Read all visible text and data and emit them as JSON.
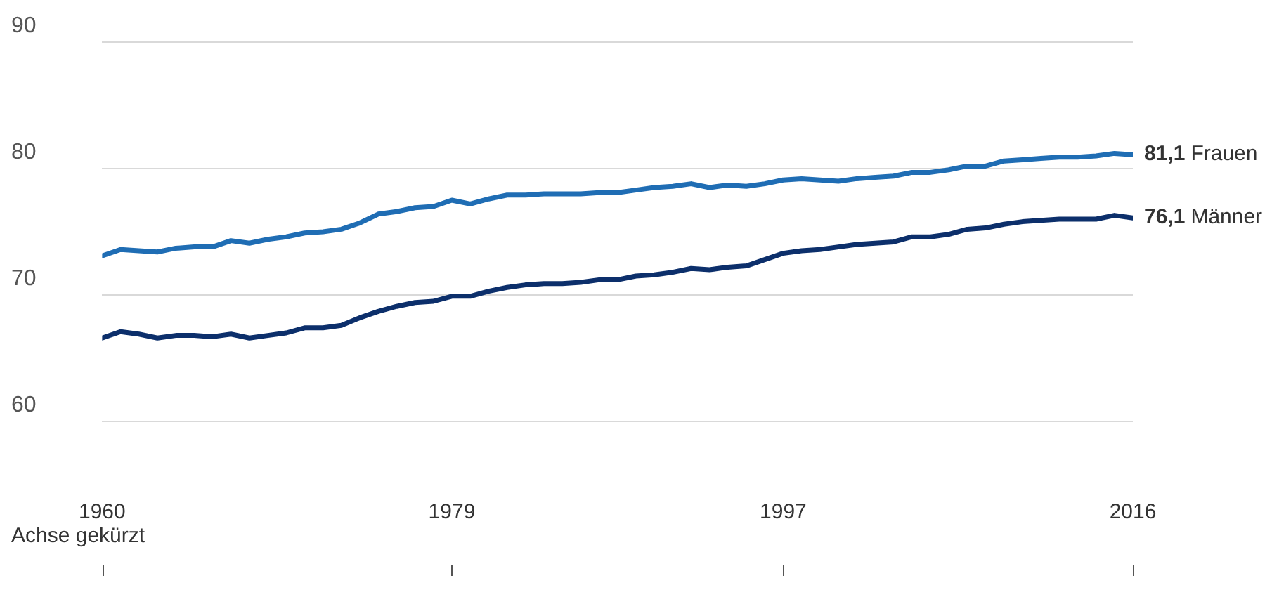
{
  "chart_data": {
    "type": "line",
    "annotations": [
      "Achse gekürzt"
    ],
    "x": [
      1960,
      1961,
      1962,
      1963,
      1964,
      1965,
      1966,
      1967,
      1968,
      1969,
      1970,
      1971,
      1972,
      1973,
      1974,
      1975,
      1976,
      1977,
      1978,
      1979,
      1980,
      1981,
      1982,
      1983,
      1984,
      1985,
      1986,
      1987,
      1988,
      1989,
      1990,
      1991,
      1992,
      1993,
      1994,
      1995,
      1996,
      1997,
      1998,
      1999,
      2000,
      2001,
      2002,
      2003,
      2004,
      2005,
      2006,
      2007,
      2008,
      2009,
      2010,
      2011,
      2012,
      2013,
      2014,
      2015,
      2016
    ],
    "series": [
      {
        "name": "Frauen",
        "color": "#1f6db4",
        "values": [
          73.1,
          73.6,
          73.5,
          73.4,
          73.7,
          73.8,
          73.8,
          74.3,
          74.1,
          74.4,
          74.6,
          74.9,
          75.0,
          75.2,
          75.7,
          76.4,
          76.6,
          76.9,
          77.0,
          77.5,
          77.2,
          77.6,
          77.9,
          77.9,
          78.0,
          78.0,
          78.0,
          78.1,
          78.1,
          78.3,
          78.5,
          78.6,
          78.8,
          78.5,
          78.7,
          78.6,
          78.8,
          79.1,
          79.2,
          79.1,
          79.0,
          79.2,
          79.3,
          79.4,
          79.7,
          79.7,
          79.9,
          80.2,
          80.2,
          80.6,
          80.7,
          80.8,
          80.9,
          80.9,
          81.0,
          81.2,
          81.1
        ],
        "value_labels": [
          null,
          null,
          null,
          null,
          null,
          null,
          null,
          null,
          null,
          null,
          null,
          null,
          null,
          null,
          null,
          null,
          null,
          null,
          null,
          null,
          null,
          null,
          null,
          null,
          null,
          null,
          null,
          null,
          null,
          null,
          null,
          null,
          null,
          null,
          null,
          null,
          null,
          null,
          null,
          null,
          null,
          null,
          null,
          null,
          null,
          null,
          null,
          null,
          null,
          null,
          null,
          null,
          null,
          null,
          null,
          null,
          "81,1"
        ]
      },
      {
        "name": "Männer",
        "color": "#0c2f6b",
        "values": [
          66.6,
          67.1,
          66.9,
          66.6,
          66.8,
          66.8,
          66.7,
          66.9,
          66.6,
          66.8,
          67.0,
          67.4,
          67.4,
          67.6,
          68.2,
          68.7,
          69.1,
          69.4,
          69.5,
          69.9,
          69.9,
          70.3,
          70.6,
          70.8,
          70.9,
          70.9,
          71.0,
          71.2,
          71.2,
          71.5,
          71.6,
          71.8,
          72.1,
          72.0,
          72.2,
          72.3,
          72.8,
          73.3,
          73.5,
          73.6,
          73.8,
          74.0,
          74.1,
          74.2,
          74.6,
          74.6,
          74.8,
          75.2,
          75.3,
          75.6,
          75.8,
          75.9,
          76.0,
          76.0,
          76.0,
          76.3,
          76.1
        ],
        "value_labels": [
          null,
          null,
          null,
          null,
          null,
          null,
          null,
          null,
          null,
          null,
          null,
          null,
          null,
          null,
          null,
          null,
          null,
          null,
          null,
          null,
          null,
          null,
          null,
          null,
          null,
          null,
          null,
          null,
          null,
          null,
          null,
          null,
          null,
          null,
          null,
          null,
          null,
          null,
          null,
          null,
          null,
          null,
          null,
          null,
          null,
          null,
          null,
          null,
          null,
          null,
          null,
          null,
          null,
          null,
          null,
          null,
          "76,1"
        ]
      }
    ],
    "xlim": [
      1960,
      2016
    ],
    "xticks": [
      1960,
      1979,
      1997,
      2016
    ],
    "ylim": [
      60,
      90
    ],
    "yticks": [
      60,
      70,
      80,
      90
    ],
    "grid": "y",
    "legend": false,
    "marker": "none",
    "line_style": "solid"
  }
}
